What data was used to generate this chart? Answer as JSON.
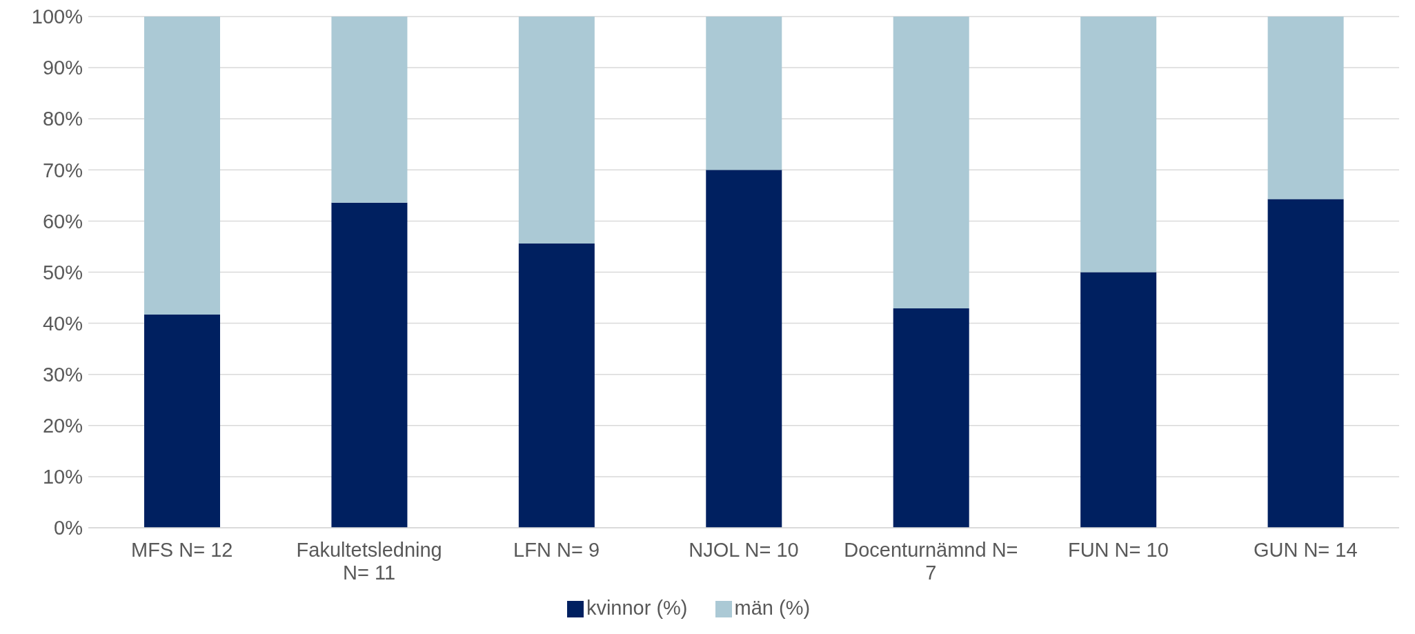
{
  "chart_data": {
    "type": "bar",
    "stacked": true,
    "categories": [
      "MFS N= 12",
      "Fakultetsledning N= 11",
      "LFN N= 9",
      "NJOL N= 10",
      "Docenturnämnd N= 7",
      "FUN N= 10",
      "GUN N= 14"
    ],
    "series": [
      {
        "name": "kvinnor (%)",
        "color": "#002060",
        "values": [
          41.7,
          63.6,
          55.6,
          70,
          42.9,
          50,
          64.3
        ]
      },
      {
        "name": "män (%)",
        "color": "#abc9d5",
        "values": [
          58.3,
          36.4,
          44.4,
          30,
          57.1,
          50,
          35.7
        ]
      }
    ],
    "ylim": [
      0,
      100
    ],
    "yticks": [
      {
        "value": 0,
        "label": "0%"
      },
      {
        "value": 10,
        "label": "10%"
      },
      {
        "value": 20,
        "label": "20%"
      },
      {
        "value": 30,
        "label": "30%"
      },
      {
        "value": 40,
        "label": "40%"
      },
      {
        "value": 50,
        "label": "50%"
      },
      {
        "value": 60,
        "label": "60%"
      },
      {
        "value": 70,
        "label": "70%"
      },
      {
        "value": 80,
        "label": "80%"
      },
      {
        "value": 90,
        "label": "90%"
      },
      {
        "value": 100,
        "label": "100%"
      }
    ],
    "grid": "y",
    "legend": "bottom"
  }
}
